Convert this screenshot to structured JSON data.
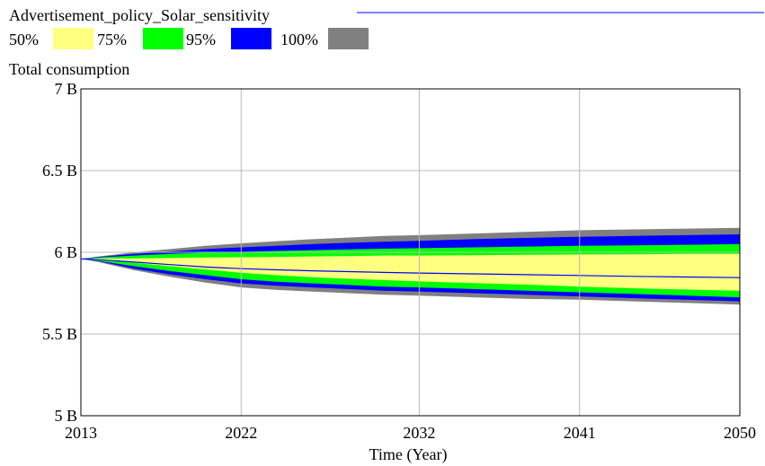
{
  "chart_data": {
    "type": "area",
    "title": "Advertisement_policy_Solar_sensitivity",
    "subtitle": "Total consumption",
    "xlabel": "Time (Year)",
    "ylabel": "",
    "xlim": [
      2013,
      2050
    ],
    "ylim": [
      5000000000,
      7000000000
    ],
    "x_ticks": [
      2013,
      2022,
      2032,
      2041,
      2050
    ],
    "x_tick_labels": [
      "2013",
      "2022",
      "2032",
      "2041",
      "2050"
    ],
    "y_ticks": [
      5000000000,
      5500000000,
      6000000000,
      6500000000,
      7000000000
    ],
    "y_tick_labels": [
      "5 B",
      "5.5 B",
      "6 B",
      "6.5 B",
      "7 B"
    ],
    "grid": true,
    "legend": [
      {
        "label": "50%",
        "color": "#ffff80"
      },
      {
        "label": "75%",
        "color": "#00ff00"
      },
      {
        "label": "95%",
        "color": "#0000ff"
      },
      {
        "label": "100%",
        "color": "#808080"
      }
    ],
    "x": [
      2013,
      2014,
      2016,
      2018,
      2020,
      2022,
      2024,
      2026,
      2028,
      2030,
      2032,
      2035,
      2038,
      2041,
      2044,
      2047,
      2050
    ],
    "bands": [
      {
        "name": "100%",
        "color": "#808080",
        "upper": [
          5.96,
          5.975,
          6.0,
          6.02,
          6.04,
          6.055,
          6.068,
          6.08,
          6.09,
          6.1,
          6.105,
          6.115,
          6.125,
          6.135,
          6.14,
          6.145,
          6.15
        ],
        "lower": [
          5.96,
          5.94,
          5.89,
          5.85,
          5.815,
          5.785,
          5.77,
          5.76,
          5.75,
          5.74,
          5.735,
          5.725,
          5.715,
          5.71,
          5.7,
          5.69,
          5.68
        ]
      },
      {
        "name": "95%",
        "color": "#0000ff",
        "upper": [
          5.96,
          5.972,
          5.99,
          6.005,
          6.02,
          6.03,
          6.04,
          6.05,
          6.058,
          6.065,
          6.07,
          6.08,
          6.088,
          6.095,
          6.1,
          6.105,
          6.11
        ],
        "lower": [
          5.96,
          5.945,
          5.9,
          5.865,
          5.835,
          5.81,
          5.795,
          5.785,
          5.775,
          5.765,
          5.76,
          5.75,
          5.74,
          5.73,
          5.72,
          5.71,
          5.7
        ]
      },
      {
        "name": "75%",
        "color": "#00ff00",
        "upper": [
          5.96,
          5.968,
          5.98,
          5.99,
          5.998,
          6.003,
          6.008,
          6.013,
          6.018,
          6.022,
          6.025,
          6.03,
          6.035,
          6.04,
          6.043,
          6.046,
          6.05
        ],
        "lower": [
          5.96,
          5.948,
          5.915,
          5.885,
          5.86,
          5.835,
          5.82,
          5.81,
          5.8,
          5.79,
          5.785,
          5.775,
          5.765,
          5.755,
          5.745,
          5.735,
          5.725
        ]
      },
      {
        "name": "50%",
        "color": "#ffff80",
        "upper": [
          5.96,
          5.962,
          5.962,
          5.965,
          5.968,
          5.97,
          5.972,
          5.975,
          5.977,
          5.98,
          5.98,
          5.982,
          5.985,
          5.987,
          5.988,
          5.99,
          5.99
        ],
        "lower": [
          5.96,
          5.952,
          5.935,
          5.915,
          5.895,
          5.875,
          5.86,
          5.848,
          5.838,
          5.83,
          5.822,
          5.812,
          5.802,
          5.79,
          5.78,
          5.772,
          5.765
        ]
      }
    ],
    "series": [
      {
        "name": "Advertisement_policy_Solar_sensitivity",
        "color": "#0000ff",
        "values": [
          5.96,
          5.955,
          5.94,
          5.925,
          5.91,
          5.9,
          5.893,
          5.887,
          5.882,
          5.877,
          5.873,
          5.868,
          5.863,
          5.858,
          5.853,
          5.849,
          5.845
        ]
      }
    ]
  }
}
